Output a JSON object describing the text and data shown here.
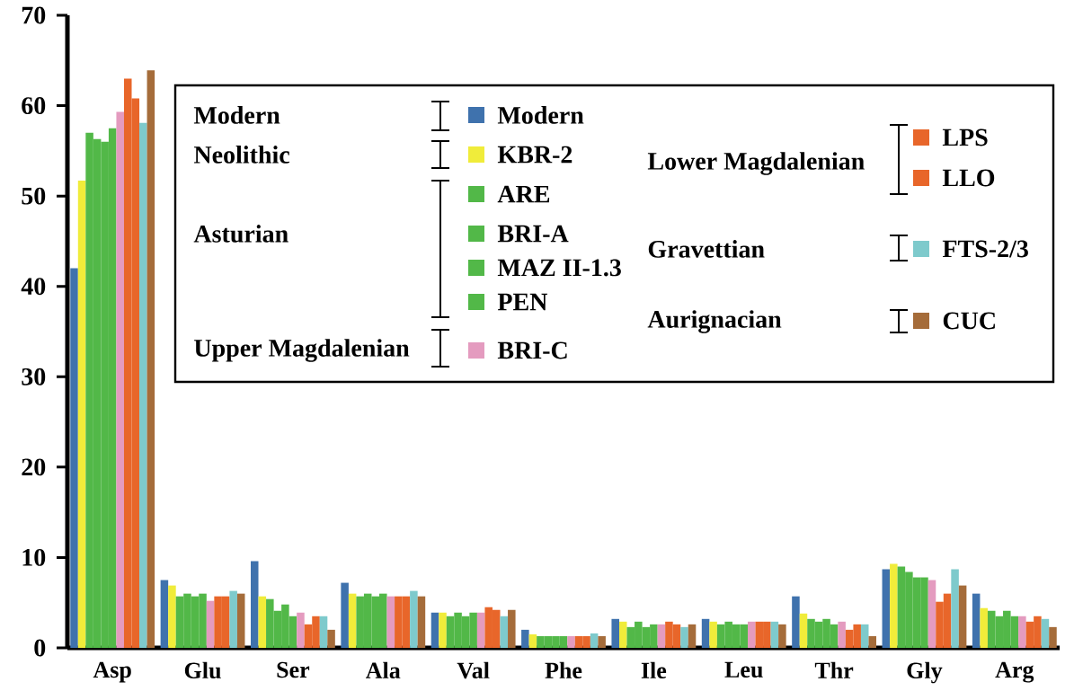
{
  "chart_data": {
    "type": "bar",
    "categories": [
      "Asp",
      "Glu",
      "Ser",
      "Ala",
      "Val",
      "Phe",
      "Ile",
      "Leu",
      "Thr",
      "Gly",
      "Arg"
    ],
    "series": [
      {
        "name": "Modern",
        "color": "#3f72ad",
        "values": [
          42,
          7.5,
          9.6,
          7.2,
          3.9,
          2.0,
          3.2,
          3.2,
          5.7,
          8.7,
          6.0
        ]
      },
      {
        "name": "KBR-2",
        "color": "#f0ec3a",
        "values": [
          51.7,
          6.9,
          5.7,
          6.0,
          3.9,
          1.5,
          2.9,
          2.9,
          3.8,
          9.3,
          4.4
        ]
      },
      {
        "name": "ARE",
        "color": "#52b848",
        "values": [
          57,
          5.7,
          5.4,
          5.7,
          3.5,
          1.3,
          2.3,
          2.6,
          3.2,
          9.0,
          4.1
        ]
      },
      {
        "name": "BRI-A",
        "color": "#52b848",
        "values": [
          56.3,
          6.0,
          4.1,
          6.0,
          3.9,
          1.3,
          2.9,
          2.9,
          2.9,
          8.4,
          3.5
        ]
      },
      {
        "name": "MAZ II-1.3",
        "color": "#52b848",
        "values": [
          56,
          5.7,
          4.8,
          5.7,
          3.5,
          1.3,
          2.3,
          2.6,
          3.2,
          7.8,
          4.1
        ]
      },
      {
        "name": "PEN",
        "color": "#52b848",
        "values": [
          57.5,
          6.0,
          3.5,
          6.0,
          3.9,
          1.3,
          2.6,
          2.6,
          2.6,
          7.8,
          3.5
        ]
      },
      {
        "name": "BRI-C",
        "color": "#e49bbf",
        "values": [
          59.3,
          5.2,
          3.9,
          5.7,
          3.9,
          1.3,
          2.6,
          2.9,
          2.9,
          7.5,
          3.5
        ]
      },
      {
        "name": "LPS",
        "color": "#e8662a",
        "values": [
          63,
          5.7,
          2.6,
          5.7,
          4.5,
          1.3,
          2.9,
          2.9,
          2.0,
          5.1,
          2.9
        ]
      },
      {
        "name": "LLO",
        "color": "#e8662a",
        "values": [
          60.8,
          5.7,
          3.5,
          5.7,
          4.2,
          1.3,
          2.6,
          2.9,
          2.6,
          6.0,
          3.5
        ]
      },
      {
        "name": "FTS-2/3",
        "color": "#7ecacc",
        "values": [
          58.1,
          6.3,
          3.5,
          6.3,
          3.5,
          1.6,
          2.3,
          2.9,
          2.6,
          8.7,
          3.2
        ]
      },
      {
        "name": "CUC",
        "color": "#a56c3a",
        "values": [
          63.9,
          6.0,
          2.0,
          5.7,
          4.2,
          1.3,
          2.6,
          2.6,
          1.3,
          6.9,
          2.3
        ]
      }
    ],
    "annotations": [
      "Modern",
      "Neolithic",
      "Asturian",
      "Upper Magdalenian",
      "Lower Magdalenian",
      "Gravettian",
      "Aurignacian"
    ],
    "ylim": [
      0,
      70
    ],
    "yticks": [
      0,
      10,
      20,
      30,
      40,
      50,
      60,
      70
    ],
    "legend": "top right"
  }
}
